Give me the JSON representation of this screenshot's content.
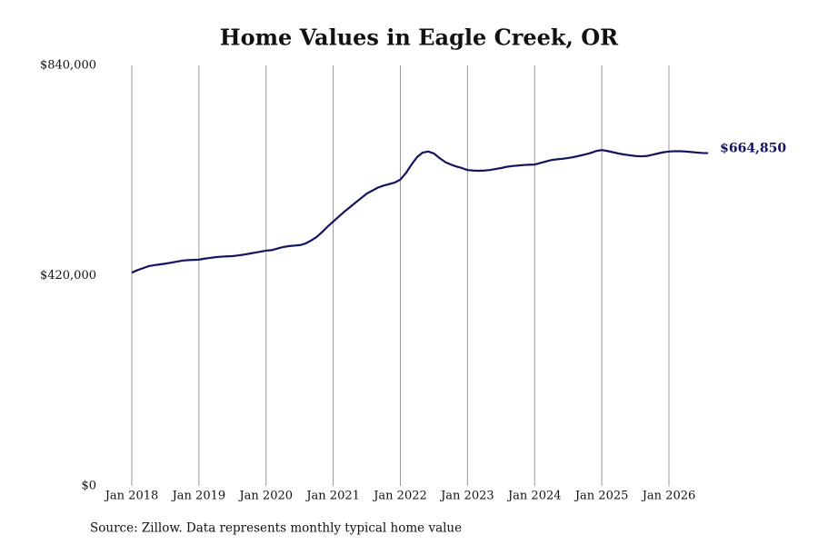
{
  "chart_data": {
    "type": "line",
    "title": "Home Values in Eagle Creek, OR",
    "source": "Source: Zillow. Data represents monthly typical home value",
    "color": "#14145e",
    "grid": "x",
    "x": [
      "2018-01",
      "2018-02",
      "2018-03",
      "2018-04",
      "2018-05",
      "2018-06",
      "2018-07",
      "2018-08",
      "2018-09",
      "2018-10",
      "2018-11",
      "2018-12",
      "2019-01",
      "2019-02",
      "2019-03",
      "2019-04",
      "2019-05",
      "2019-06",
      "2019-07",
      "2019-08",
      "2019-09",
      "2019-10",
      "2019-11",
      "2019-12",
      "2020-01",
      "2020-02",
      "2020-03",
      "2020-04",
      "2020-05",
      "2020-06",
      "2020-07",
      "2020-08",
      "2020-09",
      "2020-10",
      "2020-11",
      "2020-12",
      "2021-01",
      "2021-02",
      "2021-03",
      "2021-04",
      "2021-05",
      "2021-06",
      "2021-07",
      "2021-08",
      "2021-09",
      "2021-10",
      "2021-11",
      "2021-12",
      "2022-01",
      "2022-02",
      "2022-03",
      "2022-04",
      "2022-05",
      "2022-06",
      "2022-07",
      "2022-08",
      "2022-09",
      "2022-10",
      "2022-11",
      "2022-12",
      "2023-01",
      "2023-02",
      "2023-03",
      "2023-04",
      "2023-05",
      "2023-06",
      "2023-07",
      "2023-08",
      "2023-09",
      "2023-10",
      "2023-11",
      "2023-12",
      "2024-01",
      "2024-02",
      "2024-03",
      "2024-04",
      "2024-05",
      "2024-06",
      "2024-07",
      "2024-08",
      "2024-09",
      "2024-10",
      "2024-11",
      "2024-12",
      "2025-01",
      "2025-02",
      "2025-03",
      "2025-04",
      "2025-05",
      "2025-06",
      "2025-07",
      "2025-08",
      "2025-09",
      "2025-10",
      "2025-11",
      "2025-12",
      "2026-01",
      "2026-02",
      "2026-03",
      "2026-04",
      "2026-05",
      "2026-06",
      "2026-07",
      "2026-08"
    ],
    "values": [
      426000,
      431000,
      435000,
      439000,
      441000,
      442500,
      444000,
      446000,
      448000,
      450000,
      451000,
      451500,
      452000,
      454000,
      455500,
      457000,
      458000,
      458500,
      459000,
      460500,
      462000,
      464000,
      466000,
      468000,
      470000,
      471000,
      474000,
      477000,
      479000,
      480000,
      481000,
      484000,
      490000,
      497000,
      507000,
      518000,
      528000,
      538000,
      548000,
      557000,
      566000,
      575000,
      584000,
      590000,
      596000,
      600000,
      603000,
      606000,
      612000,
      625000,
      642000,
      657000,
      666000,
      668000,
      664000,
      655000,
      647000,
      642000,
      638000,
      635000,
      631000,
      630000,
      629500,
      630000,
      631000,
      633000,
      635000,
      637500,
      639000,
      640000,
      641000,
      641500,
      642000,
      645000,
      648000,
      651000,
      652500,
      653500,
      655000,
      657000,
      659500,
      662000,
      665000,
      669000,
      671000,
      669000,
      666500,
      664000,
      662000,
      660500,
      659000,
      658500,
      659000,
      661500,
      664000,
      666500,
      668000,
      668500,
      668500,
      668000,
      667000,
      666000,
      665000,
      664850
    ],
    "value_labels": [
      null,
      null,
      null,
      null,
      null,
      null,
      null,
      null,
      null,
      null,
      null,
      null,
      null,
      null,
      null,
      null,
      null,
      null,
      null,
      null,
      null,
      null,
      null,
      null,
      null,
      null,
      null,
      null,
      null,
      null,
      null,
      null,
      null,
      null,
      null,
      null,
      null,
      null,
      null,
      null,
      null,
      null,
      null,
      null,
      null,
      null,
      null,
      null,
      null,
      null,
      null,
      null,
      null,
      null,
      null,
      null,
      null,
      null,
      null,
      null,
      null,
      null,
      null,
      null,
      null,
      null,
      null,
      null,
      null,
      null,
      null,
      null,
      null,
      null,
      null,
      null,
      null,
      null,
      null,
      null,
      null,
      null,
      null,
      null,
      null,
      null,
      null,
      null,
      null,
      null,
      null,
      null,
      null,
      null,
      null,
      null,
      null,
      null,
      null,
      null,
      null,
      null,
      null,
      "$664,850"
    ],
    "xticks": [
      {
        "value": "2018-01",
        "label": "Jan 2018"
      },
      {
        "value": "2019-01",
        "label": "Jan 2019"
      },
      {
        "value": "2020-01",
        "label": "Jan 2020"
      },
      {
        "value": "2021-01",
        "label": "Jan 2021"
      },
      {
        "value": "2022-01",
        "label": "Jan 2022"
      },
      {
        "value": "2023-01",
        "label": "Jan 2023"
      },
      {
        "value": "2024-01",
        "label": "Jan 2024"
      },
      {
        "value": "2025-01",
        "label": "Jan 2025"
      },
      {
        "value": "2026-01",
        "label": "Jan 2026"
      }
    ],
    "ylim": [
      0,
      840000
    ],
    "yticks": [
      {
        "value": 0,
        "label": "$0"
      },
      {
        "value": 420000,
        "label": "$420,000"
      },
      {
        "value": 840000,
        "label": "$840,000"
      }
    ]
  }
}
